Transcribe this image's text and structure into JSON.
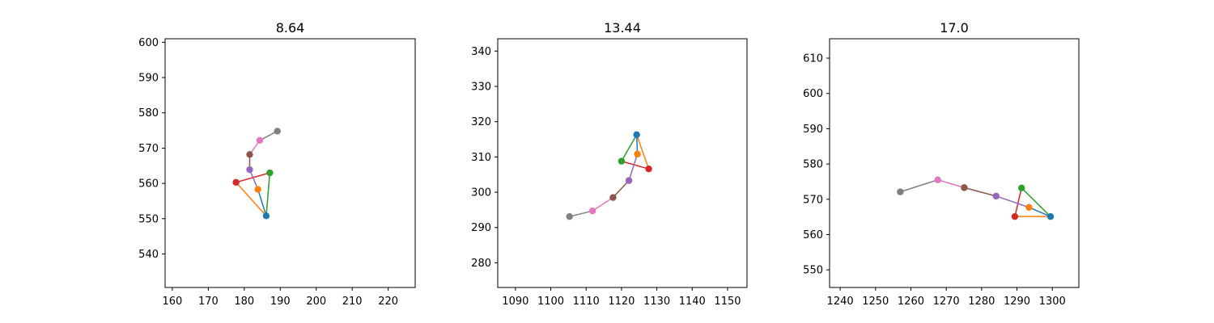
{
  "chart_data": [
    {
      "type": "scatter",
      "title": "8.64",
      "xlabel": "",
      "ylabel": "",
      "xlim": [
        158,
        227.5
      ],
      "ylim": [
        530.5,
        601
      ],
      "xticks": [
        160,
        170,
        180,
        190,
        200,
        210,
        220
      ],
      "yticks": [
        540,
        550,
        560,
        570,
        580,
        590,
        600
      ],
      "grid": false,
      "points": [
        {
          "x": 186.1,
          "y": 550.8
        },
        {
          "x": 183.8,
          "y": 558.3
        },
        {
          "x": 187.1,
          "y": 563.0
        },
        {
          "x": 177.7,
          "y": 560.3
        },
        {
          "x": 181.5,
          "y": 563.9
        },
        {
          "x": 181.5,
          "y": 568.2
        },
        {
          "x": 184.3,
          "y": 572.2
        },
        {
          "x": 189.2,
          "y": 574.8
        }
      ]
    },
    {
      "type": "scatter",
      "title": "13.44",
      "xlabel": "",
      "ylabel": "",
      "xlim": [
        1085,
        1155.5
      ],
      "ylim": [
        273,
        343.5
      ],
      "xticks": [
        1090,
        1100,
        1110,
        1120,
        1130,
        1140,
        1150
      ],
      "yticks": [
        280,
        290,
        300,
        310,
        320,
        330,
        340
      ],
      "grid": false,
      "points": [
        {
          "x": 1124.3,
          "y": 316.3
        },
        {
          "x": 1124.5,
          "y": 310.8
        },
        {
          "x": 1120.0,
          "y": 308.8
        },
        {
          "x": 1127.7,
          "y": 306.6
        },
        {
          "x": 1122.1,
          "y": 303.3
        },
        {
          "x": 1117.6,
          "y": 298.5
        },
        {
          "x": 1111.8,
          "y": 294.7
        },
        {
          "x": 1105.3,
          "y": 293.1
        }
      ]
    },
    {
      "type": "scatter",
      "title": "17.0",
      "xlabel": "",
      "ylabel": "",
      "xlim": [
        1237,
        1307.5
      ],
      "ylim": [
        545,
        615.5
      ],
      "xticks": [
        1240,
        1250,
        1260,
        1270,
        1280,
        1290,
        1300
      ],
      "yticks": [
        550,
        560,
        570,
        580,
        590,
        600,
        610
      ],
      "grid": false,
      "points": [
        {
          "x": 1299.5,
          "y": 565.1
        },
        {
          "x": 1293.4,
          "y": 567.7
        },
        {
          "x": 1291.3,
          "y": 573.2
        },
        {
          "x": 1289.4,
          "y": 565.1
        },
        {
          "x": 1284.1,
          "y": 570.9
        },
        {
          "x": 1275.1,
          "y": 573.3
        },
        {
          "x": 1267.6,
          "y": 575.5
        },
        {
          "x": 1257.0,
          "y": 572.1
        }
      ]
    }
  ],
  "segments": [
    {
      "from": 0,
      "to": 1,
      "color": "#1f77b4"
    },
    {
      "from": 0,
      "to": 3,
      "color": "#ff7f0e"
    },
    {
      "from": 0,
      "to": 2,
      "color": "#2ca02c"
    },
    {
      "from": 3,
      "to": 2,
      "color": "#d62728"
    },
    {
      "from": 4,
      "to": 1,
      "color": "#9467bd"
    },
    {
      "from": 5,
      "to": 4,
      "color": "#8c564b"
    },
    {
      "from": 6,
      "to": 5,
      "color": "#e377c2"
    },
    {
      "from": 7,
      "to": 6,
      "color": "#7f7f7f"
    }
  ],
  "point_colors": [
    "#1f77b4",
    "#ff7f0e",
    "#2ca02c",
    "#d62728",
    "#9467bd",
    "#8c564b",
    "#e377c2",
    "#7f7f7f"
  ]
}
